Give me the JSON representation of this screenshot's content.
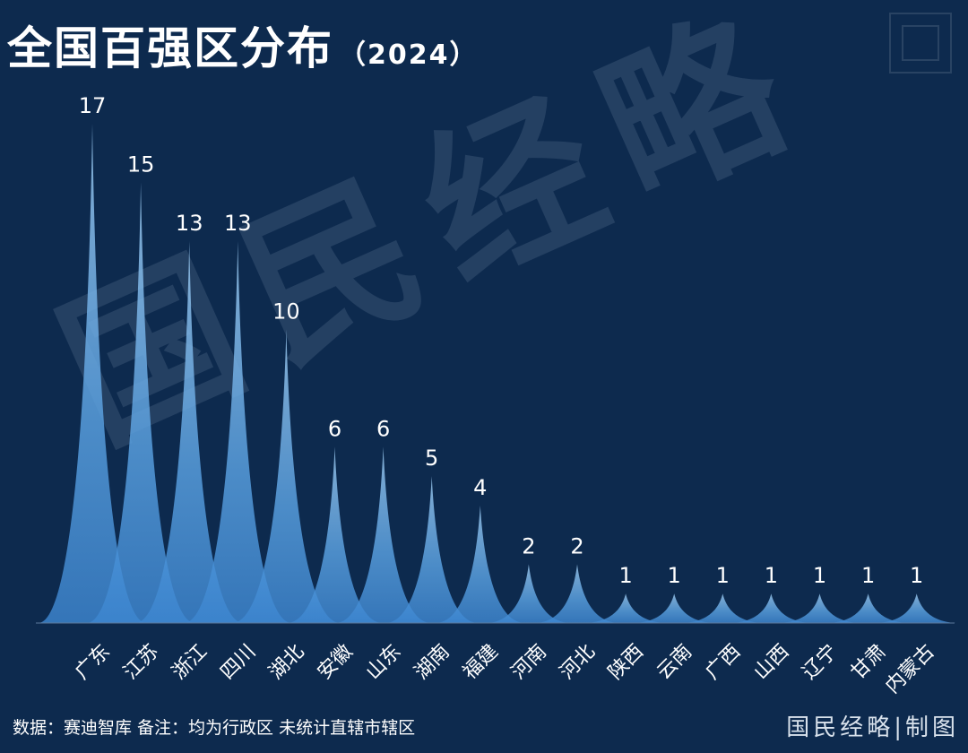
{
  "title": "全国百强区分布",
  "title_year": "（2024）",
  "watermark": "国民经略",
  "footer": {
    "source": "数据：赛迪智库  备注：均为行政区 未统计直辖市辖区",
    "brand": "国民经略|制图"
  },
  "colors": {
    "background": "#0d2a4e",
    "peak_top": "#8ec3f0",
    "peak_bottom": "#3a7fc8",
    "text": "#ffffff"
  },
  "chart_data": {
    "type": "area",
    "title": "全国百强区分布",
    "xlabel": "",
    "ylabel": "",
    "categories": [
      "广东",
      "江苏",
      "浙江",
      "四川",
      "湖北",
      "安徽",
      "山东",
      "湖南",
      "福建",
      "河南",
      "河北",
      "陕西",
      "云南",
      "广西",
      "山西",
      "辽宁",
      "甘肃",
      "内蒙古"
    ],
    "values": [
      17,
      15,
      13,
      13,
      10,
      6,
      6,
      5,
      4,
      2,
      2,
      1,
      1,
      1,
      1,
      1,
      1,
      1
    ],
    "ylim": [
      0,
      17
    ],
    "grid": false,
    "legend": "none"
  }
}
